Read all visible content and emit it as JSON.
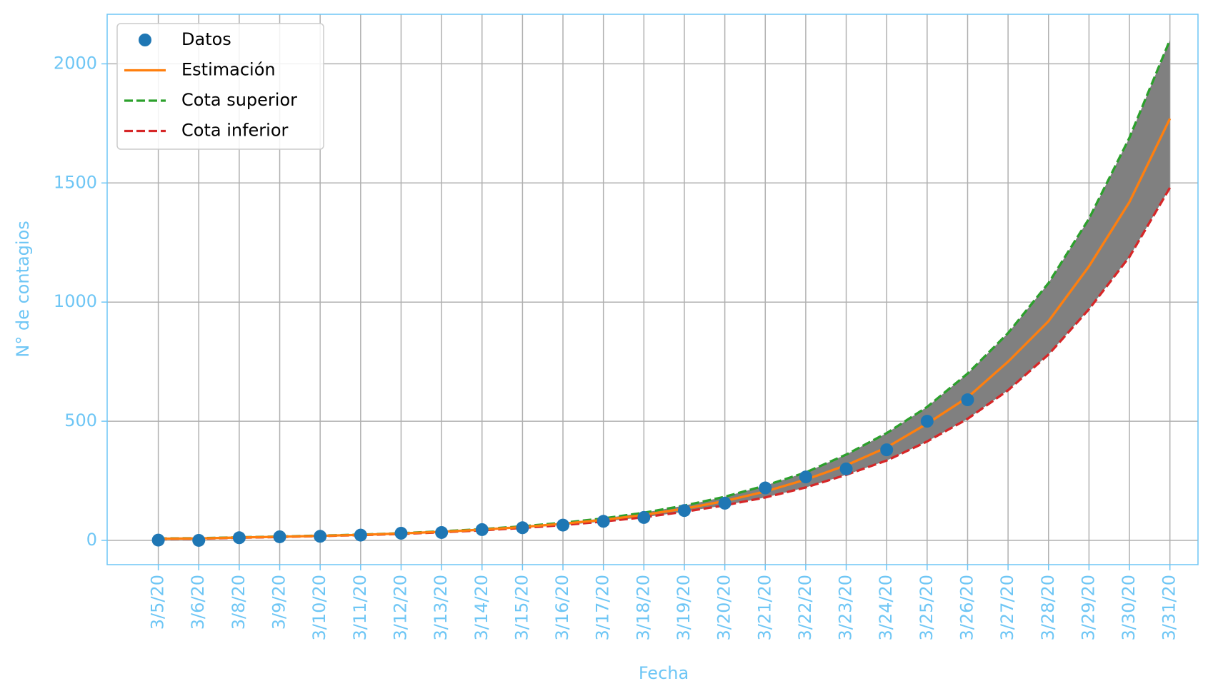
{
  "chart_data": {
    "type": "line",
    "xlabel": "Fecha",
    "ylabel": "N° de contagios",
    "categories": [
      "3/5/20",
      "3/6/20",
      "3/8/20",
      "3/9/20",
      "3/10/20",
      "3/11/20",
      "3/12/20",
      "3/13/20",
      "3/14/20",
      "3/15/20",
      "3/16/20",
      "3/17/20",
      "3/18/20",
      "3/19/20",
      "3/20/20",
      "3/21/20",
      "3/22/20",
      "3/23/20",
      "3/24/20",
      "3/25/20",
      "3/26/20",
      "3/27/20",
      "3/28/20",
      "3/29/20",
      "3/30/20",
      "3/31/20"
    ],
    "series": [
      {
        "name": "Datos",
        "color": "#1f77b4",
        "style": "marker",
        "values": [
          1,
          0,
          11,
          15,
          17,
          22,
          30,
          33,
          45,
          53,
          64,
          80,
          96,
          125,
          156,
          220,
          266,
          300,
          380,
          500,
          590,
          null,
          null,
          null,
          null,
          null
        ]
      },
      {
        "name": "Estimación",
        "color": "#ff7f0e",
        "style": "solid",
        "values": [
          7,
          8,
          12,
          15,
          19,
          23,
          29,
          36,
          45,
          56,
          70,
          86,
          107,
          133,
          165,
          205,
          255,
          315,
          390,
          490,
          600,
          750,
          920,
          1150,
          1420,
          1770
        ]
      },
      {
        "name": "Cota superior",
        "color": "#2ca02c",
        "style": "dashed",
        "values": [
          8,
          9,
          13,
          16,
          20,
          24,
          30,
          38,
          47,
          59,
          74,
          92,
          116,
          146,
          183,
          230,
          285,
          360,
          450,
          560,
          700,
          870,
          1080,
          1350,
          1690,
          2100
        ]
      },
      {
        "name": "Cota inferior",
        "color": "#d62728",
        "style": "dashed",
        "values": [
          6,
          7,
          11,
          14,
          18,
          22,
          27,
          34,
          42,
          52,
          64,
          79,
          97,
          120,
          147,
          180,
          222,
          275,
          335,
          415,
          510,
          630,
          780,
          970,
          1190,
          1480
        ]
      }
    ],
    "fill_between": {
      "color": "#808080"
    },
    "ylim": [
      -102,
      2208
    ],
    "yticks": [
      0,
      500,
      1000,
      1500,
      2000
    ],
    "grid": true,
    "legend": "upper left",
    "axis_color": "#6ec6f5",
    "grid_color": "#b0b0b0"
  }
}
